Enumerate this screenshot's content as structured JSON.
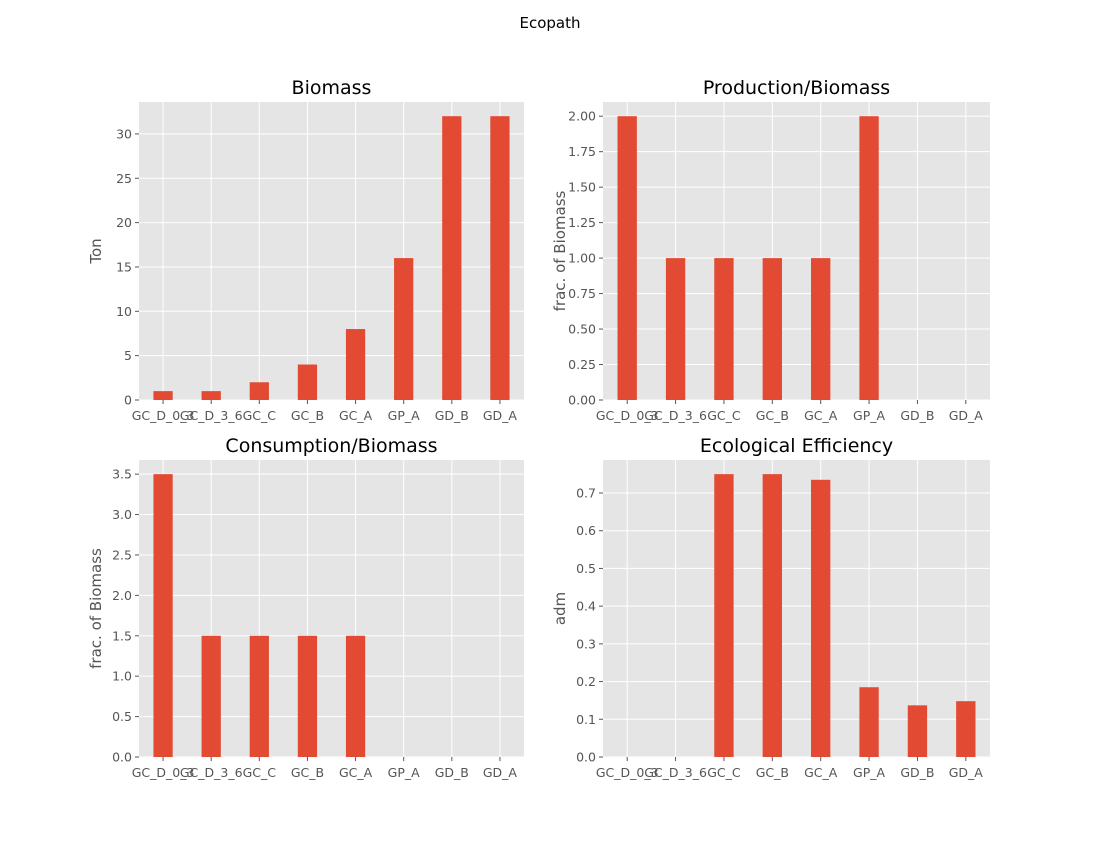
{
  "figure": {
    "suptitle": "Ecopath"
  },
  "colors": {
    "bar": "#E24A33",
    "axes_bg": "#E5E5E5",
    "grid": "#FFFFFF",
    "tick_text": "#555555"
  },
  "chart_data": [
    {
      "id": "biomass",
      "type": "bar",
      "title": "Biomass",
      "xlabel": "",
      "ylabel": "Ton",
      "categories": [
        "GC_D_0_3",
        "GC_D_3_6",
        "GC_C",
        "GC_B",
        "GC_A",
        "GP_A",
        "GD_B",
        "GD_A"
      ],
      "values": [
        1,
        1,
        2,
        4,
        8,
        16,
        32,
        32
      ],
      "ylim": [
        0,
        33.6
      ],
      "yticks": [
        0,
        5,
        10,
        15,
        20,
        25,
        30
      ],
      "ytick_labels": [
        "0",
        "5",
        "10",
        "15",
        "20",
        "25",
        "30"
      ],
      "grid": true
    },
    {
      "id": "production-biomass",
      "type": "bar",
      "title": "Production/Biomass",
      "xlabel": "",
      "ylabel": "frac. of Biomass",
      "categories": [
        "GC_D_0_3",
        "GC_D_3_6",
        "GC_C",
        "GC_B",
        "GC_A",
        "GP_A",
        "GD_B",
        "GD_A"
      ],
      "values": [
        2,
        1,
        1,
        1,
        1,
        2,
        0,
        0
      ],
      "ylim": [
        0,
        2.1
      ],
      "yticks": [
        0,
        0.25,
        0.5,
        0.75,
        1,
        1.25,
        1.5,
        1.75,
        2
      ],
      "ytick_labels": [
        "0.00",
        "0.25",
        "0.50",
        "0.75",
        "1.00",
        "1.25",
        "1.50",
        "1.75",
        "2.00"
      ],
      "grid": true
    },
    {
      "id": "consumption-biomass",
      "type": "bar",
      "title": "Consumption/Biomass",
      "xlabel": "",
      "ylabel": "frac. of Biomass",
      "categories": [
        "GC_D_0_3",
        "GC_D_3_6",
        "GC_C",
        "GC_B",
        "GC_A",
        "GP_A",
        "GD_B",
        "GD_A"
      ],
      "values": [
        3.5,
        1.5,
        1.5,
        1.5,
        1.5,
        0,
        0,
        0
      ],
      "ylim": [
        0,
        3.675
      ],
      "yticks": [
        0,
        0.5,
        1,
        1.5,
        2,
        2.5,
        3,
        3.5
      ],
      "ytick_labels": [
        "0.0",
        "0.5",
        "1.0",
        "1.5",
        "2.0",
        "2.5",
        "3.0",
        "3.5"
      ],
      "grid": true
    },
    {
      "id": "ecological-efficiency",
      "type": "bar",
      "title": "Ecological Efficiency",
      "xlabel": "",
      "ylabel": "adm",
      "categories": [
        "GC_D_0_3",
        "GC_D_3_6",
        "GC_C",
        "GC_B",
        "GC_A",
        "GP_A",
        "GD_B",
        "GD_A"
      ],
      "values": [
        0,
        0,
        0.75,
        0.75,
        0.735,
        0.185,
        0.137,
        0.148
      ],
      "ylim": [
        0,
        0.7875
      ],
      "yticks": [
        0,
        0.1,
        0.2,
        0.3,
        0.4,
        0.5,
        0.6,
        0.7
      ],
      "ytick_labels": [
        "0.0",
        "0.1",
        "0.2",
        "0.3",
        "0.4",
        "0.5",
        "0.6",
        "0.7"
      ],
      "grid": true
    }
  ]
}
